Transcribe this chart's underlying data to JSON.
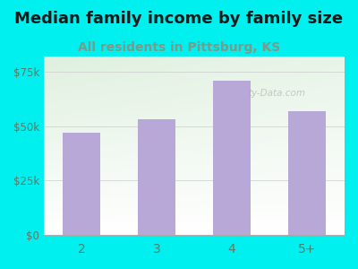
{
  "title": "Median family income by family size",
  "subtitle": "All residents in Pittsburg, KS",
  "categories": [
    "2",
    "3",
    "4",
    "5+"
  ],
  "values": [
    47000,
    53000,
    71000,
    57000
  ],
  "bar_color": "#b8a8d8",
  "outer_bg": "#00efef",
  "plot_bg_top_left": "#dff0df",
  "plot_bg_bottom_right": "#f8fff8",
  "title_color": "#1a1a1a",
  "subtitle_color": "#7a9a8a",
  "tick_color": "#5a7a6a",
  "title_fontsize": 13,
  "subtitle_fontsize": 10,
  "yticks": [
    0,
    25000,
    50000,
    75000
  ],
  "ytick_labels": [
    "$0",
    "$25k",
    "$50k",
    "$75k"
  ],
  "ylim": [
    0,
    82000
  ],
  "watermark": "ty-Data.com"
}
